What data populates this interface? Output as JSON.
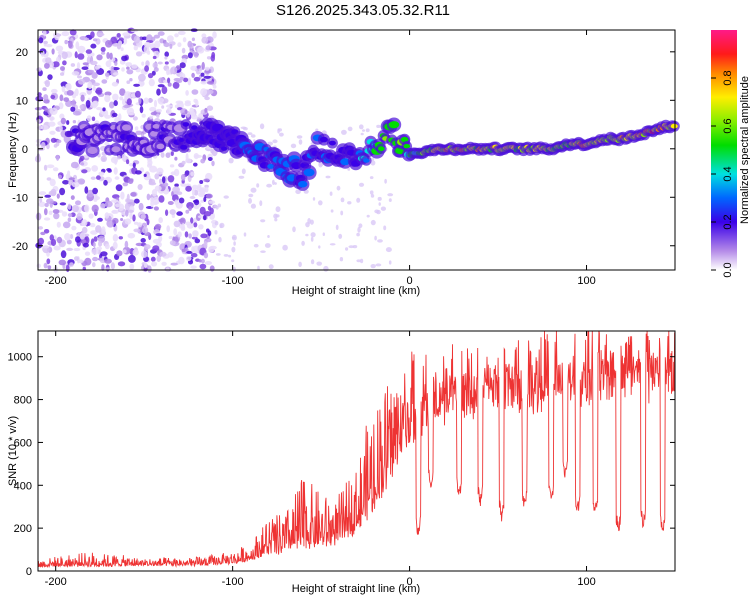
{
  "title": "S126.2025.343.05.32.R11",
  "chart_data": [
    {
      "type": "heatmap",
      "name": "spectrogram",
      "xlabel": "Height of straight line (km)",
      "ylabel": "Frequency (Hz)",
      "xlim": [
        -210,
        150
      ],
      "ylim": [
        -25,
        24.5
      ],
      "xticks": [
        -200,
        -100,
        0,
        100
      ],
      "yticks": [
        -20,
        -10,
        0,
        10,
        20
      ],
      "colorbar": {
        "label": "Normalized spectral amplitude",
        "ticks": [
          "0.0",
          "0.2",
          "0.4",
          "0.6",
          "0.8"
        ],
        "range": [
          0,
          1
        ]
      },
      "ridge": {
        "description_points_x": [
          -170,
          -150,
          -120,
          -100,
          -90,
          -80,
          -70,
          -60,
          -50,
          -40,
          -30,
          -20,
          -10,
          0,
          20,
          40,
          60,
          80,
          90,
          100,
          110,
          120,
          130,
          140,
          150
        ],
        "frequency_hz": [
          2,
          2,
          3,
          2,
          -1,
          -2,
          -4,
          -5,
          1,
          -2,
          -2,
          1,
          3,
          -1,
          0,
          0,
          0,
          0,
          1,
          1,
          2,
          2,
          3,
          4,
          5
        ],
        "amplitude": [
          0.2,
          0.2,
          0.25,
          0.3,
          0.35,
          0.35,
          0.4,
          0.35,
          0.3,
          0.3,
          0.35,
          0.6,
          0.7,
          0.6,
          0.85,
          0.8,
          0.8,
          0.8,
          0.7,
          0.85,
          0.8,
          0.85,
          0.85,
          0.9,
          0.9
        ]
      },
      "noise_region_x": [
        -210,
        -110
      ],
      "noise_frequency_range": [
        -25,
        24.5
      ]
    },
    {
      "type": "line",
      "name": "snr",
      "xlabel": "Height of straight line (km)",
      "ylabel": "SNR (10 * v/v)",
      "xlim": [
        -210,
        150
      ],
      "ylim": [
        0,
        1120
      ],
      "xticks": [
        -200,
        -100,
        0,
        100
      ],
      "yticks": [
        0,
        200,
        400,
        600,
        800,
        1000
      ],
      "color": "#ee3333",
      "envelope": {
        "x": [
          -210,
          -180,
          -150,
          -120,
          -100,
          -90,
          -80,
          -70,
          -60,
          -50,
          -40,
          -30,
          -20,
          -10,
          0,
          10,
          20,
          40,
          60,
          80,
          100,
          120,
          140,
          150
        ],
        "base": [
          20,
          22,
          25,
          25,
          35,
          50,
          80,
          90,
          110,
          120,
          140,
          200,
          300,
          480,
          640,
          700,
          760,
          800,
          820,
          830,
          860,
          880,
          880,
          880
        ],
        "peak": [
          55,
          90,
          60,
          65,
          90,
          130,
          260,
          280,
          460,
          360,
          350,
          500,
          800,
          930,
          1000,
          1020,
          980,
          1000,
          1040,
          1080,
          1100,
          1110,
          1120,
          1100
        ]
      },
      "dropouts": [
        {
          "x": 5,
          "min": 150
        },
        {
          "x": 12,
          "min": 380
        },
        {
          "x": 28,
          "min": 330
        },
        {
          "x": 40,
          "min": 300
        },
        {
          "x": 52,
          "min": 230
        },
        {
          "x": 65,
          "min": 280
        },
        {
          "x": 80,
          "min": 300
        },
        {
          "x": 88,
          "min": 420
        },
        {
          "x": 95,
          "min": 260
        },
        {
          "x": 105,
          "min": 250
        },
        {
          "x": 118,
          "min": 170
        },
        {
          "x": 132,
          "min": 190
        },
        {
          "x": 143,
          "min": 160
        }
      ]
    }
  ]
}
